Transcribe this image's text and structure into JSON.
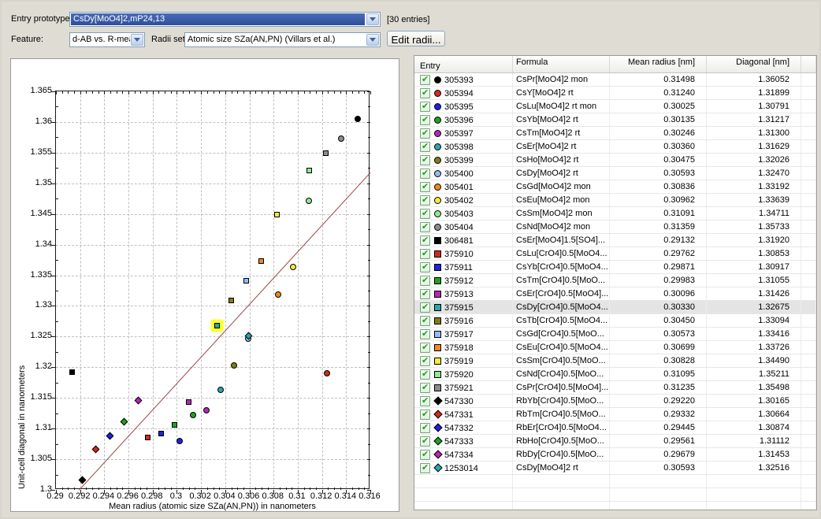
{
  "toolbar": {
    "entry_prototype_label": "Entry prototype:",
    "entry_prototype_value": "CsDy[MoO4]2,mP24,13",
    "entries_count": "[30 entries]",
    "feature_label": "Feature:",
    "feature_value": "d-AB vs. R-mean",
    "radii_set_label": "Radii set:",
    "radii_set_value": "Atomic size SZa(AN,PN) (Villars et al.)",
    "edit_radii_button": "Edit radii..."
  },
  "colors": {
    "window_bg": "#DFDCD4",
    "selection_blue": "#3356A8",
    "trend_line": "#9C4646",
    "highlight_box": "#FFFF2E",
    "grid_line": "#C0C0C0",
    "palette": {
      "black": "#000000",
      "red": "#D02A1E",
      "blue": "#2121DE",
      "green": "#1FA11F",
      "magenta": "#B428B4",
      "teal": "#2AA8A8",
      "olive": "#7E7E16",
      "lightblue": "#94BCF0",
      "orange": "#EE8822",
      "yellow": "#F5EB3C",
      "lightgreen": "#8FE98F",
      "gray": "#8C8C8C"
    }
  },
  "table": {
    "columns": [
      "Entry",
      "Formula",
      "Mean radius [nm]",
      "Diagonal [nm]"
    ]
  },
  "chart_data": {
    "type": "scatter",
    "xlabel": "Mean radius (atomic size SZa(AN,PN)) in nanometers",
    "ylabel": "Unit-cell diagonal in nanometers",
    "xlim": [
      0.29,
      0.316
    ],
    "ylim": [
      1.3,
      1.365
    ],
    "x_tick_step": 0.002,
    "y_tick_step": 0.005,
    "x_tick_labels": [
      "0.29",
      "0.292",
      "0.294",
      "0.296",
      "0.298",
      "0.3",
      "0.302",
      "0.304",
      "0.306",
      "0.308",
      "0.31",
      "0.312",
      "0.314",
      "0.316"
    ],
    "y_tick_labels": [
      "1.365",
      "1.36",
      "1.355",
      "1.35",
      "1.345",
      "1.34",
      "1.335",
      "1.33",
      "1.325",
      "1.32",
      "1.315",
      "1.31",
      "1.305",
      "1.3"
    ],
    "grid": true,
    "legend_position": "none",
    "trendline": {
      "x1": 0.2919,
      "y1": 1.3,
      "x2": 0.316,
      "y2": 1.3518
    },
    "highlighted_entry": "375915",
    "points": [
      {
        "entry": "305393",
        "formula": "CsPr[MoO4]2 mon",
        "x": 0.31498,
        "y": 1.36052,
        "color": "black",
        "shape": "circle",
        "checked": true
      },
      {
        "entry": "305394",
        "formula": "CsY[MoO4]2 rt",
        "x": 0.3124,
        "y": 1.31899,
        "color": "red",
        "shape": "circle",
        "checked": true
      },
      {
        "entry": "305395",
        "formula": "CsLu[MoO4]2 rt mon",
        "x": 0.30025,
        "y": 1.30791,
        "color": "blue",
        "shape": "circle",
        "checked": true
      },
      {
        "entry": "305396",
        "formula": "CsYb[MoO4]2 rt",
        "x": 0.30135,
        "y": 1.31217,
        "color": "green",
        "shape": "circle",
        "checked": true
      },
      {
        "entry": "305397",
        "formula": "CsTm[MoO4]2 rt",
        "x": 0.30246,
        "y": 1.313,
        "color": "magenta",
        "shape": "circle",
        "checked": true
      },
      {
        "entry": "305398",
        "formula": "CsEr[MoO4]2 rt",
        "x": 0.3036,
        "y": 1.31629,
        "color": "teal",
        "shape": "circle",
        "checked": true
      },
      {
        "entry": "305399",
        "formula": "CsHo[MoO4]2 rt",
        "x": 0.30475,
        "y": 1.32026,
        "color": "olive",
        "shape": "circle",
        "checked": true
      },
      {
        "entry": "305400",
        "formula": "CsDy[MoO4]2 rt",
        "x": 0.30593,
        "y": 1.3247,
        "color": "lightblue",
        "shape": "circle",
        "checked": true
      },
      {
        "entry": "305401",
        "formula": "CsGd[MoO4]2 mon",
        "x": 0.30836,
        "y": 1.33192,
        "color": "orange",
        "shape": "circle",
        "checked": true
      },
      {
        "entry": "305402",
        "formula": "CsEu[MoO4]2 mon",
        "x": 0.30962,
        "y": 1.33639,
        "color": "yellow",
        "shape": "circle",
        "checked": true
      },
      {
        "entry": "305403",
        "formula": "CsSm[MoO4]2 mon",
        "x": 0.31091,
        "y": 1.34711,
        "color": "lightgreen",
        "shape": "circle",
        "checked": true
      },
      {
        "entry": "305404",
        "formula": "CsNd[MoO4]2 mon",
        "x": 0.31359,
        "y": 1.35733,
        "color": "gray",
        "shape": "circle",
        "checked": true
      },
      {
        "entry": "306481",
        "formula": "CsEr[MoO4]1.5[SO4]...",
        "x": 0.29132,
        "y": 1.3192,
        "color": "black",
        "shape": "square",
        "checked": true
      },
      {
        "entry": "375910",
        "formula": "CsLu[CrO4]0.5[MoO4...",
        "x": 0.29762,
        "y": 1.30853,
        "color": "red",
        "shape": "square",
        "checked": true
      },
      {
        "entry": "375911",
        "formula": "CsYb[CrO4]0.5[MoO4...",
        "x": 0.29871,
        "y": 1.30917,
        "color": "blue",
        "shape": "square",
        "checked": true
      },
      {
        "entry": "375912",
        "formula": "CsTm[CrO4]0.5[MoO...",
        "x": 0.29983,
        "y": 1.31055,
        "color": "green",
        "shape": "square",
        "checked": true
      },
      {
        "entry": "375913",
        "formula": "CsEr[CrO4]0.5[MoO4]...",
        "x": 0.30096,
        "y": 1.31426,
        "color": "magenta",
        "shape": "square",
        "checked": true
      },
      {
        "entry": "375915",
        "formula": "CsDy[CrO4]0.5[MoO4...",
        "x": 0.3033,
        "y": 1.32675,
        "color": "teal",
        "shape": "square",
        "checked": true
      },
      {
        "entry": "375916",
        "formula": "CsTb[CrO4]0.5[MoO4...",
        "x": 0.3045,
        "y": 1.33094,
        "color": "olive",
        "shape": "square",
        "checked": true
      },
      {
        "entry": "375917",
        "formula": "CsGd[CrO4]0.5[MoO...",
        "x": 0.30573,
        "y": 1.33416,
        "color": "lightblue",
        "shape": "square",
        "checked": true
      },
      {
        "entry": "375918",
        "formula": "CsEu[CrO4]0.5[MoO4...",
        "x": 0.30699,
        "y": 1.33726,
        "color": "orange",
        "shape": "square",
        "checked": true
      },
      {
        "entry": "375919",
        "formula": "CsSm[CrO4]0.5[MoO...",
        "x": 0.30828,
        "y": 1.3449,
        "color": "yellow",
        "shape": "square",
        "checked": true
      },
      {
        "entry": "375920",
        "formula": "CsNd[CrO4]0.5[MoO...",
        "x": 0.31095,
        "y": 1.35211,
        "color": "lightgreen",
        "shape": "square",
        "checked": true
      },
      {
        "entry": "375921",
        "formula": "CsPr[CrO4]0.5[MoO4]...",
        "x": 0.31235,
        "y": 1.35498,
        "color": "gray",
        "shape": "square",
        "checked": true
      },
      {
        "entry": "547330",
        "formula": "RbYb[CrO4]0.5[MoO...",
        "x": 0.2922,
        "y": 1.30165,
        "color": "black",
        "shape": "diamond",
        "checked": true
      },
      {
        "entry": "547331",
        "formula": "RbTm[CrO4]0.5[MoO...",
        "x": 0.29332,
        "y": 1.30664,
        "color": "red",
        "shape": "diamond",
        "checked": true
      },
      {
        "entry": "547332",
        "formula": "RbEr[CrO4]0.5[MoO4...",
        "x": 0.29445,
        "y": 1.30874,
        "color": "blue",
        "shape": "diamond",
        "checked": true
      },
      {
        "entry": "547333",
        "formula": "RbHo[CrO4]0.5[MoO...",
        "x": 0.29561,
        "y": 1.31112,
        "color": "green",
        "shape": "diamond",
        "checked": true
      },
      {
        "entry": "547334",
        "formula": "RbDy[CrO4]0.5[MoO...",
        "x": 0.29679,
        "y": 1.31453,
        "color": "magenta",
        "shape": "diamond",
        "checked": true
      },
      {
        "entry": "1253014",
        "formula": "CsDy[MoO4]2 rt",
        "x": 0.30593,
        "y": 1.32516,
        "color": "teal",
        "shape": "diamond",
        "checked": true
      }
    ]
  }
}
